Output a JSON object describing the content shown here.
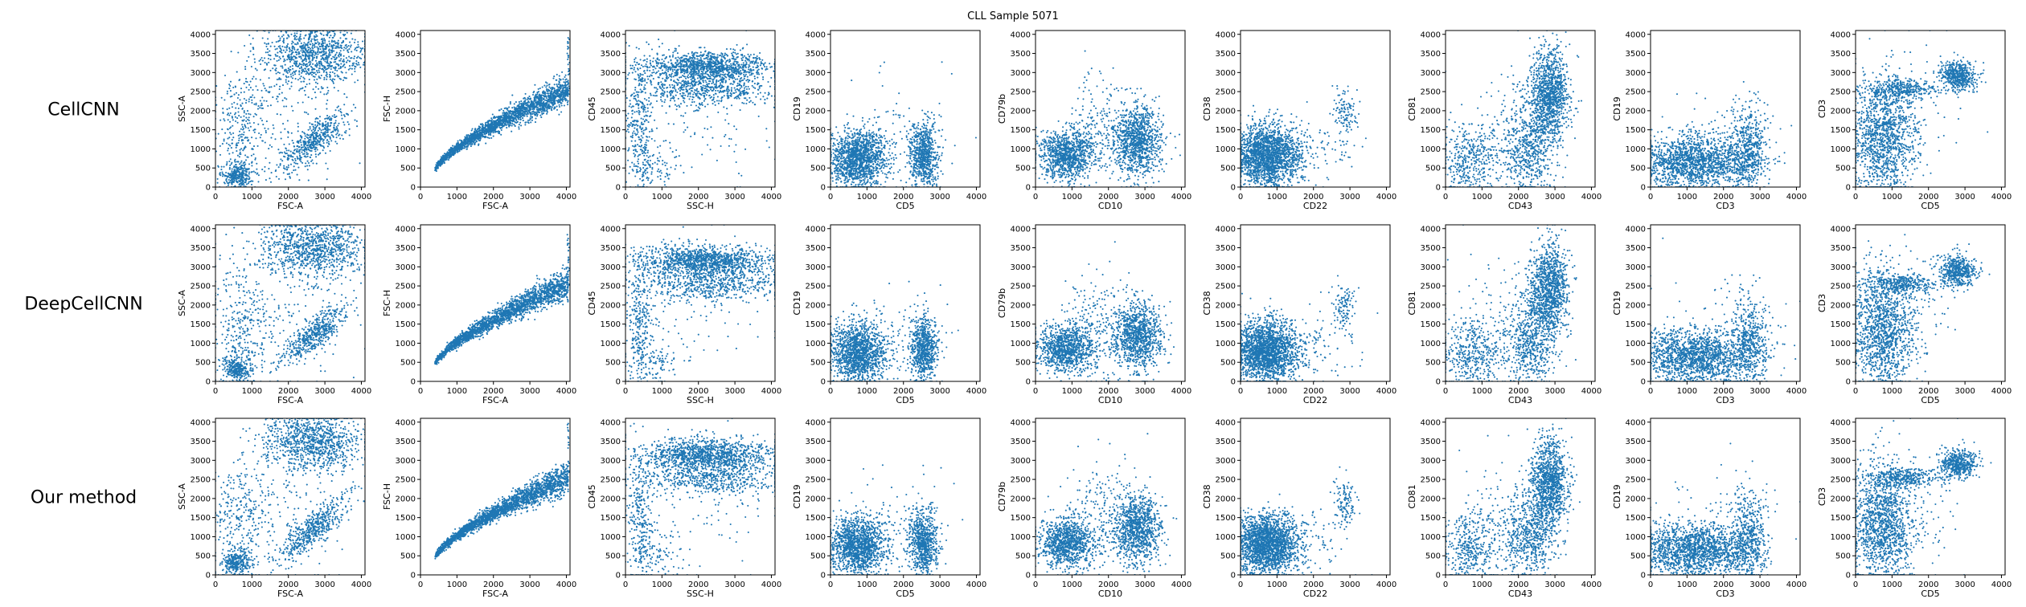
{
  "chart_data": {
    "type": "scatter",
    "title": "CLL Sample 5071",
    "series_color": "#1f77b4",
    "rows": [
      "CellCNN",
      "DeepCellCNN",
      "Our method"
    ],
    "panels": [
      {
        "x_label": "FSC-A",
        "y_label": "SSC-A"
      },
      {
        "x_label": "FSC-A",
        "y_label": "FSC-H"
      },
      {
        "x_label": "SSC-H",
        "y_label": "CD45"
      },
      {
        "x_label": "CD5",
        "y_label": "CD19"
      },
      {
        "x_label": "CD10",
        "y_label": "CD79b"
      },
      {
        "x_label": "CD22",
        "y_label": "CD38"
      },
      {
        "x_label": "CD43",
        "y_label": "CD81"
      },
      {
        "x_label": "CD3",
        "y_label": "CD19"
      },
      {
        "x_label": "CD5",
        "y_label": "CD3"
      }
    ],
    "xlim": [
      0,
      4100
    ],
    "ylim": [
      0,
      4100
    ],
    "x_ticks": [
      "0",
      "1000",
      "2000",
      "3000",
      "4000"
    ],
    "y_ticks": [
      "0",
      "500",
      "1000",
      "1500",
      "2000",
      "2500",
      "3000",
      "3500",
      "4000"
    ],
    "x_tick_values": [
      0,
      1000,
      2000,
      3000,
      4000
    ],
    "y_tick_values": [
      0,
      500,
      1000,
      1500,
      2000,
      2500,
      3000,
      3500,
      4000
    ],
    "clusters": [
      [
        {
          "x": 2700,
          "y": 3500,
          "sx": 700,
          "sy": 400,
          "w": 5
        },
        {
          "x": 2700,
          "y": 1200,
          "sx": 450,
          "sy": 400,
          "w": 2.5,
          "r": 0.8
        },
        {
          "x": 600,
          "y": 300,
          "sx": 200,
          "sy": 180,
          "w": 1.5
        },
        {
          "x": 700,
          "y": 1500,
          "sx": 350,
          "sy": 800,
          "w": 1.2
        },
        {
          "x": 1800,
          "y": 1800,
          "sx": 900,
          "sy": 900,
          "w": 1
        }
      ],
      [
        {
          "t": "curve",
          "x0": 400,
          "x1": 4050,
          "w": 5
        }
      ],
      [
        {
          "x": 2200,
          "y": 3150,
          "sx": 900,
          "sy": 200,
          "w": 4
        },
        {
          "x": 2300,
          "y": 2550,
          "sx": 1000,
          "sy": 220,
          "w": 2
        },
        {
          "x": 400,
          "y": 1500,
          "sx": 180,
          "sy": 900,
          "w": 1
        },
        {
          "x": 800,
          "y": 500,
          "sx": 400,
          "sy": 250,
          "w": 0.3
        },
        {
          "x": 2000,
          "y": 2000,
          "sx": 1200,
          "sy": 900,
          "w": 0.4
        }
      ],
      [
        {
          "x": 750,
          "y": 750,
          "sx": 400,
          "sy": 380,
          "w": 5
        },
        {
          "x": 2550,
          "y": 850,
          "sx": 200,
          "sy": 420,
          "w": 2.5
        },
        {
          "x": 1800,
          "y": 1200,
          "sx": 700,
          "sy": 700,
          "w": 0.3
        }
      ],
      [
        {
          "x": 850,
          "y": 850,
          "sx": 380,
          "sy": 320,
          "w": 3.5
        },
        {
          "x": 2800,
          "y": 1200,
          "sx": 320,
          "sy": 450,
          "w": 3.5
        },
        {
          "x": 1800,
          "y": 1500,
          "sx": 500,
          "sy": 700,
          "w": 0.8
        }
      ],
      [
        {
          "x": 700,
          "y": 800,
          "sx": 450,
          "sy": 400,
          "w": 5
        },
        {
          "x": 2850,
          "y": 1900,
          "sx": 150,
          "sy": 350,
          "w": 0.3
        },
        {
          "x": 1500,
          "y": 900,
          "sx": 800,
          "sy": 500,
          "w": 0.4
        }
      ],
      [
        {
          "x": 2850,
          "y": 2400,
          "sx": 250,
          "sy": 600,
          "w": 4
        },
        {
          "x": 2300,
          "y": 1000,
          "sx": 350,
          "sy": 600,
          "w": 2
        },
        {
          "x": 700,
          "y": 700,
          "sx": 400,
          "sy": 500,
          "w": 1.5
        },
        {
          "x": 1700,
          "y": 1500,
          "sx": 800,
          "sy": 900,
          "w": 0.5
        }
      ],
      [
        {
          "x": 1200,
          "y": 650,
          "sx": 800,
          "sy": 350,
          "w": 5
        },
        {
          "x": 2700,
          "y": 1000,
          "sx": 250,
          "sy": 600,
          "w": 1.5
        },
        {
          "x": 2000,
          "y": 1500,
          "sx": 900,
          "sy": 700,
          "w": 0.2
        }
      ],
      [
        {
          "x": 750,
          "y": 1300,
          "sx": 450,
          "sy": 800,
          "w": 4
        },
        {
          "x": 2800,
          "y": 2900,
          "sx": 250,
          "sy": 200,
          "w": 1.5
        },
        {
          "x": 1300,
          "y": 2550,
          "sx": 450,
          "sy": 130,
          "w": 1
        },
        {
          "x": 1500,
          "y": 1800,
          "sx": 700,
          "sy": 800,
          "w": 0.3
        }
      ]
    ]
  }
}
